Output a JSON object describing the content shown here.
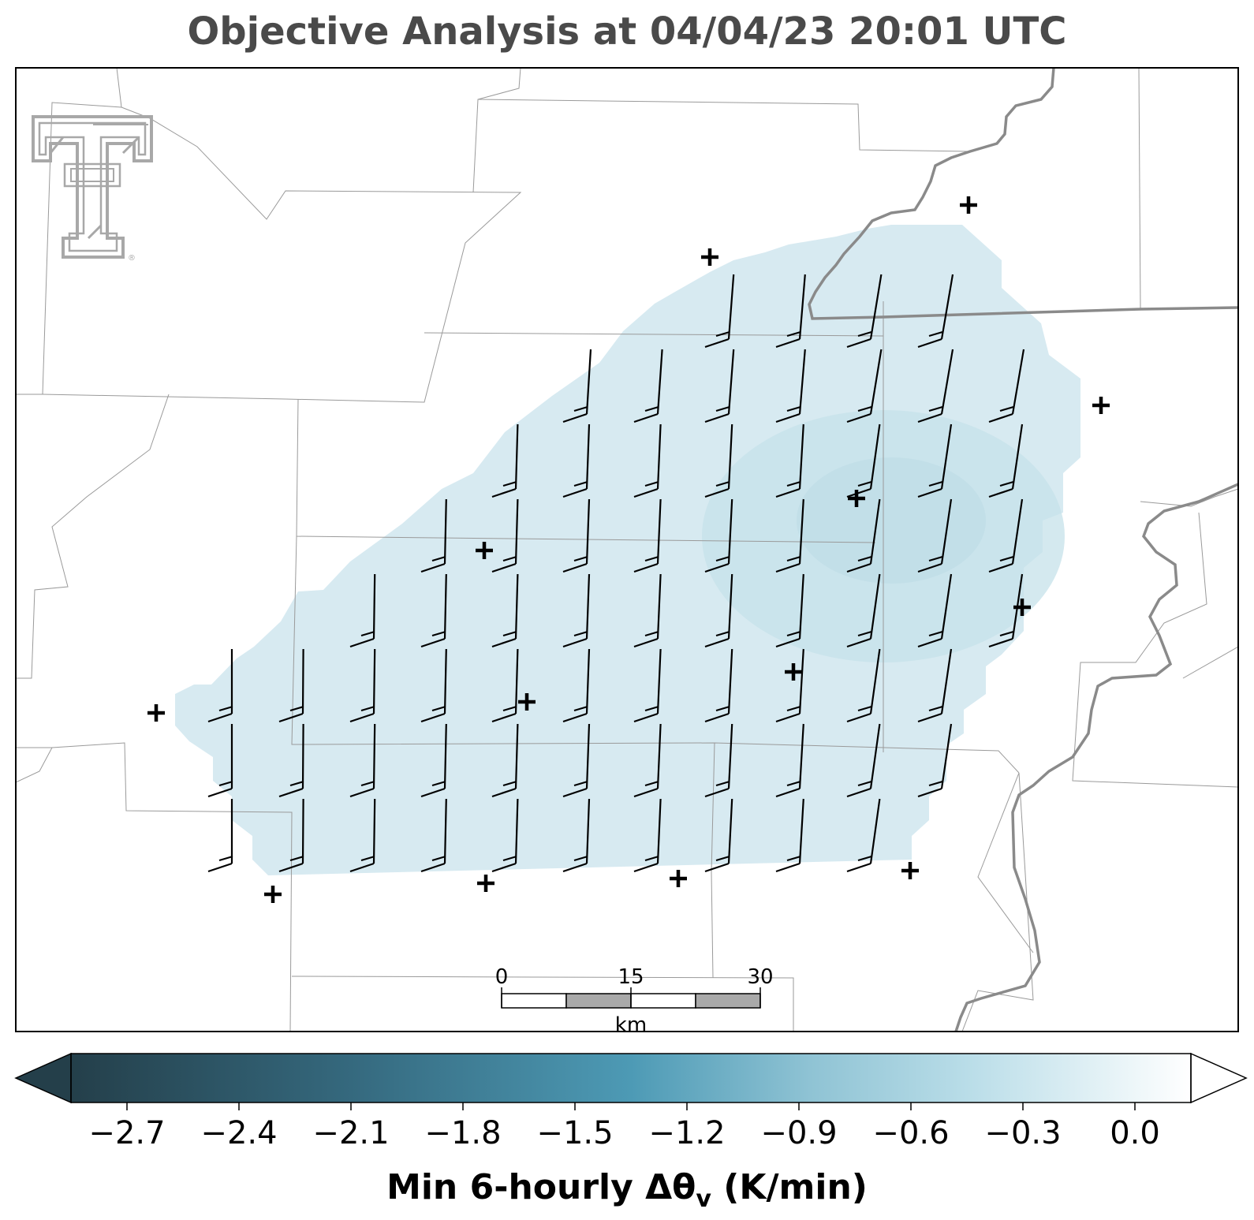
{
  "title": "Objective Analysis at 04/04/23 20:01 UTC",
  "colorbar": {
    "label": "Min 6-hourly Δθ",
    "label_sub": "v",
    "label_units": "(K/min)",
    "ticks": [
      "−2.7",
      "−2.4",
      "−2.1",
      "−1.8",
      "−1.5",
      "−1.2",
      "−0.9",
      "−0.6",
      "−0.3",
      "0.0"
    ],
    "tick_values": [
      -2.7,
      -2.4,
      -2.1,
      -1.8,
      -1.5,
      -1.2,
      -0.9,
      -0.6,
      -0.3,
      0.0
    ],
    "vmin": -2.85,
    "vmax": 0.15,
    "extend": "both",
    "colors": [
      "#253f4a",
      "#3f8aa6",
      "#a9d3e0",
      "#ffffff"
    ]
  },
  "scale_bar": {
    "unit": "km",
    "labels": [
      "0",
      "15",
      "30"
    ]
  },
  "colors": {
    "analysis_fill": "#d4e9f0",
    "state_border": "#8a8a8a",
    "county_border": "#9a9a9a",
    "logo": "#a8a8a8"
  },
  "logo": {
    "name": "texas-tech-double-t-logo",
    "registered_mark": "®"
  },
  "station_marker": "+"
}
